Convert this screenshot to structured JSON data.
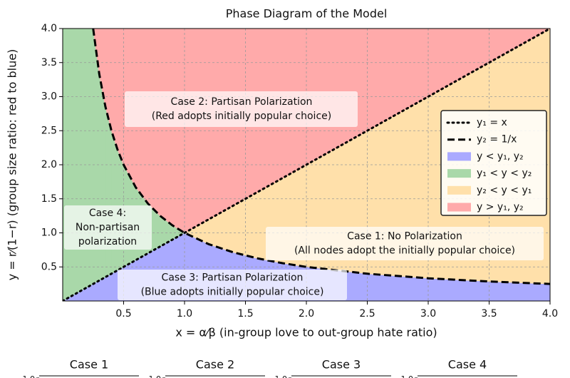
{
  "chart_data": {
    "type": "phase",
    "title": "Phase Diagram of the Model",
    "xlabel": "x = α⁄β (in-group love to out-group hate ratio)",
    "ylabel": "y = r⁄(1−r) (group size ratio: red to blue)",
    "xlim": [
      0,
      4
    ],
    "ylim": [
      0,
      4
    ],
    "xticks": [
      0.5,
      {
        "value": 1,
        "label": "1.0"
      },
      1.5,
      {
        "value": 2,
        "label": "2.0"
      },
      2.5,
      {
        "value": 3,
        "label": "3.0"
      },
      3.5,
      {
        "value": 4,
        "label": "4.0"
      }
    ],
    "yticks": [
      0.5,
      {
        "value": 1,
        "label": "1.0"
      },
      1.5,
      {
        "value": 2,
        "label": "2.0"
      },
      2.5,
      {
        "value": 3,
        "label": "3.0"
      },
      3.5,
      {
        "value": 4,
        "label": "4.0"
      }
    ],
    "grid": true,
    "series": [
      {
        "name": "y₁ = x",
        "color": "#000000",
        "style": "dotted",
        "x": [
          0,
          4
        ],
        "values": [
          0,
          4
        ]
      },
      {
        "name": "y₂ = 1/x",
        "color": "#000000",
        "style": "dashed",
        "x": [
          0.25,
          0.3,
          0.35,
          0.4,
          0.45,
          0.5,
          0.6,
          0.7,
          0.8,
          0.9,
          1,
          1.2,
          1.4,
          1.6,
          1.8,
          2,
          2.5,
          3,
          3.5,
          4
        ],
        "values": [
          4,
          3.333,
          2.857,
          2.5,
          2.222,
          2,
          1.667,
          1.429,
          1.25,
          1.111,
          1,
          0.833,
          0.714,
          0.625,
          0.556,
          0.5,
          0.4,
          0.333,
          0.286,
          0.25
        ]
      }
    ],
    "regions": [
      {
        "name": "y < y₁, y₂",
        "color": "#aaaaff"
      },
      {
        "name": "y₁ < y < y₂",
        "color": "#a9d8a9"
      },
      {
        "name": "y₂ < y < y₁",
        "color": "#ffe0aa"
      },
      {
        "name": "y > y₁, y₂",
        "color": "#ffaaaa"
      }
    ],
    "legend": "center right",
    "annotations": [
      {
        "lines": [
          "Case 1: No Polarization",
          "(All nodes adopt the initially popular choice)"
        ]
      },
      {
        "lines": [
          "Case 2: Partisan Polarization",
          "(Red adopts initially popular choice)"
        ]
      },
      {
        "lines": [
          "Case 3: Partisan Polarization",
          "(Blue adopts initially popular choice)"
        ]
      },
      {
        "lines": [
          "Case 4:",
          "Non-partisan",
          "polarization"
        ]
      }
    ]
  },
  "subplots": [
    {
      "title": "Case 1",
      "ytick": {
        "value": 1,
        "label": "1.0"
      }
    },
    {
      "title": "Case 2",
      "ytick": {
        "value": 1,
        "label": "1.0"
      }
    },
    {
      "title": "Case 3",
      "ytick": {
        "value": 1,
        "label": "1.0"
      }
    },
    {
      "title": "Case 4",
      "ytick": {
        "value": 1,
        "label": "1.0"
      }
    }
  ]
}
